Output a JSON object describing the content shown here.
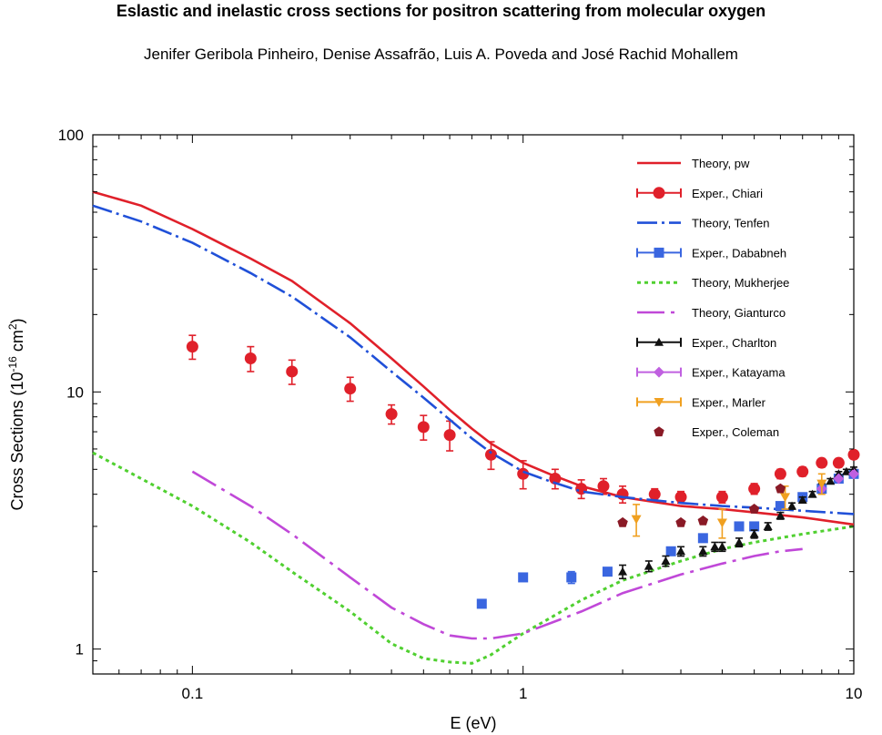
{
  "header": {
    "title": "Eslastic and inelastic cross sections for positron scattering from molecular oxygen",
    "authors": "Jenifer Geribola Pinheiro, Denise Assafrão,  Luis A. Poveda and José Rachid Mohallem"
  },
  "chart_data": {
    "type": "scatter",
    "xlabel": "E (eV)",
    "ylabel_main": "Cross Sections (10",
    "ylabel_exp": "-16",
    "ylabel_mid": " cm",
    "ylabel_exp2": "2",
    "ylabel_end": ")",
    "xscale": "log",
    "yscale": "log",
    "xlim": [
      0.05,
      10
    ],
    "ylim": [
      0.8,
      100
    ],
    "xticks": [
      {
        "v": 0.1,
        "label": "0.1"
      },
      {
        "v": 1,
        "label": "1"
      },
      {
        "v": 10,
        "label": "10"
      }
    ],
    "yticks": [
      {
        "v": 1,
        "label": "1"
      },
      {
        "v": 10,
        "label": "10"
      },
      {
        "v": 100,
        "label": "100"
      }
    ],
    "legend_position": "top-right",
    "series": [
      {
        "name": "Theory, pw",
        "kind": "line",
        "dash": "solid",
        "color": "#e0202a",
        "x": [
          0.05,
          0.07,
          0.1,
          0.15,
          0.2,
          0.3,
          0.4,
          0.5,
          0.6,
          0.7,
          0.8,
          1,
          1.2,
          1.5,
          2,
          3,
          4,
          5,
          7,
          10
        ],
        "y": [
          60,
          53,
          43,
          33,
          27,
          18.5,
          13.5,
          10.5,
          8.5,
          7.2,
          6.3,
          5.3,
          4.8,
          4.3,
          3.9,
          3.6,
          3.5,
          3.4,
          3.25,
          3.05
        ]
      },
      {
        "name": "Exper., Chiari",
        "kind": "points",
        "marker": "circle",
        "color": "#e0202a",
        "x": [
          0.1,
          0.15,
          0.2,
          0.3,
          0.4,
          0.5,
          0.6,
          0.8,
          1.0,
          1.25,
          1.5,
          1.75,
          2.0,
          2.5,
          3.0,
          4.0,
          5.0,
          6.0,
          7.0,
          8.0,
          9.0,
          10.0
        ],
        "y": [
          15,
          13.5,
          12,
          10.3,
          8.2,
          7.3,
          6.8,
          5.7,
          4.8,
          4.6,
          4.2,
          4.3,
          4.0,
          4.0,
          3.9,
          3.9,
          4.2,
          4.8,
          4.9,
          5.3,
          5.3,
          5.7
        ],
        "err": [
          1.6,
          1.5,
          1.3,
          1.1,
          0.7,
          0.8,
          0.9,
          0.7,
          0.6,
          0.4,
          0.35,
          0.3,
          0.3,
          0.2,
          0.2,
          0.2,
          0.2,
          0.2,
          0.2,
          0.2,
          0.2,
          0.2
        ]
      },
      {
        "name": "Theory, Tenfen",
        "kind": "line",
        "dash": "dashdot",
        "color": "#2050d8",
        "x": [
          0.05,
          0.07,
          0.1,
          0.15,
          0.2,
          0.3,
          0.4,
          0.5,
          0.6,
          0.7,
          0.8,
          1,
          1.2,
          1.5,
          2,
          3,
          4,
          5,
          7,
          10
        ],
        "y": [
          53,
          46,
          38,
          29,
          23.5,
          16.3,
          12,
          9.5,
          7.8,
          6.6,
          5.8,
          4.9,
          4.5,
          4.1,
          3.9,
          3.7,
          3.6,
          3.55,
          3.45,
          3.35
        ]
      },
      {
        "name": "Exper., Dababneh",
        "kind": "points",
        "marker": "square",
        "color": "#3a66e0",
        "x": [
          0.75,
          1.0,
          1.4,
          1.8,
          2.8,
          3.5,
          4.5,
          5.0,
          6.0,
          7.0,
          8.0,
          9.0,
          10.0
        ],
        "y": [
          1.5,
          1.9,
          1.9,
          2.0,
          2.4,
          2.7,
          3.0,
          3.0,
          3.6,
          3.9,
          4.2,
          4.6,
          4.8
        ],
        "err": [
          0,
          0,
          0.1,
          0,
          0,
          0,
          0,
          0,
          0,
          0,
          0,
          0,
          0
        ]
      },
      {
        "name": "Theory, Mukherjee",
        "kind": "line",
        "dash": "dotted",
        "color": "#50d030",
        "x": [
          0.05,
          0.07,
          0.1,
          0.15,
          0.2,
          0.3,
          0.4,
          0.5,
          0.6,
          0.7,
          0.8,
          1,
          1.5,
          2,
          3,
          4,
          5,
          7,
          10
        ],
        "y": [
          5.8,
          4.6,
          3.6,
          2.6,
          2.0,
          1.4,
          1.05,
          0.92,
          0.89,
          0.88,
          0.95,
          1.15,
          1.55,
          1.85,
          2.2,
          2.45,
          2.6,
          2.8,
          3.0
        ]
      },
      {
        "name": "Theory, Gianturco",
        "kind": "line",
        "dash": "longdashdot",
        "color": "#c048d8",
        "x": [
          0.1,
          0.15,
          0.2,
          0.3,
          0.4,
          0.5,
          0.6,
          0.7,
          0.8,
          1,
          1.5,
          2,
          3,
          4,
          5,
          6,
          7
        ],
        "y": [
          4.9,
          3.6,
          2.8,
          1.9,
          1.45,
          1.25,
          1.13,
          1.1,
          1.1,
          1.15,
          1.4,
          1.65,
          1.95,
          2.15,
          2.3,
          2.4,
          2.45
        ]
      },
      {
        "name": "Exper., Charlton",
        "kind": "points",
        "marker": "triangle",
        "color": "#111111",
        "x": [
          2.0,
          2.4,
          2.7,
          3.0,
          3.5,
          3.8,
          4.0,
          4.5,
          5.0,
          5.5,
          6.0,
          6.5,
          7.0,
          7.5,
          8.0,
          8.5,
          9.0,
          9.5,
          10.0
        ],
        "y": [
          2.0,
          2.1,
          2.2,
          2.4,
          2.4,
          2.5,
          2.5,
          2.6,
          2.8,
          3.0,
          3.3,
          3.6,
          3.8,
          4.0,
          4.3,
          4.5,
          4.8,
          4.9,
          5.0
        ],
        "err": [
          0.12,
          0.1,
          0.1,
          0.1,
          0.1,
          0.1,
          0.1,
          0.1,
          0.1,
          0.1,
          0.1,
          0.1,
          0.1,
          0.1,
          0.1,
          0.1,
          0.1,
          0.1,
          0.1
        ]
      },
      {
        "name": "Exper., Katayama",
        "kind": "points",
        "marker": "diamond",
        "color": "#c060e0",
        "x": [
          8.0,
          9.0,
          10.0
        ],
        "y": [
          4.2,
          4.6,
          4.8
        ],
        "err": [
          0,
          0,
          0
        ]
      },
      {
        "name": "Exper., Marler",
        "kind": "points",
        "marker": "triangle-down",
        "color": "#f0a020",
        "x": [
          2.2,
          4.0,
          6.2,
          8.0
        ],
        "y": [
          3.2,
          3.1,
          3.9,
          4.4
        ],
        "err": [
          0.45,
          0.4,
          0.4,
          0.4
        ]
      },
      {
        "name": "Exper., Coleman",
        "kind": "points",
        "marker": "pentagon",
        "color": "#8a1a26",
        "x": [
          2.0,
          3.0,
          3.5,
          5.0,
          6.0
        ],
        "y": [
          3.1,
          3.1,
          3.15,
          3.5,
          4.2
        ],
        "err": [
          0,
          0,
          0,
          0,
          0
        ]
      }
    ]
  }
}
